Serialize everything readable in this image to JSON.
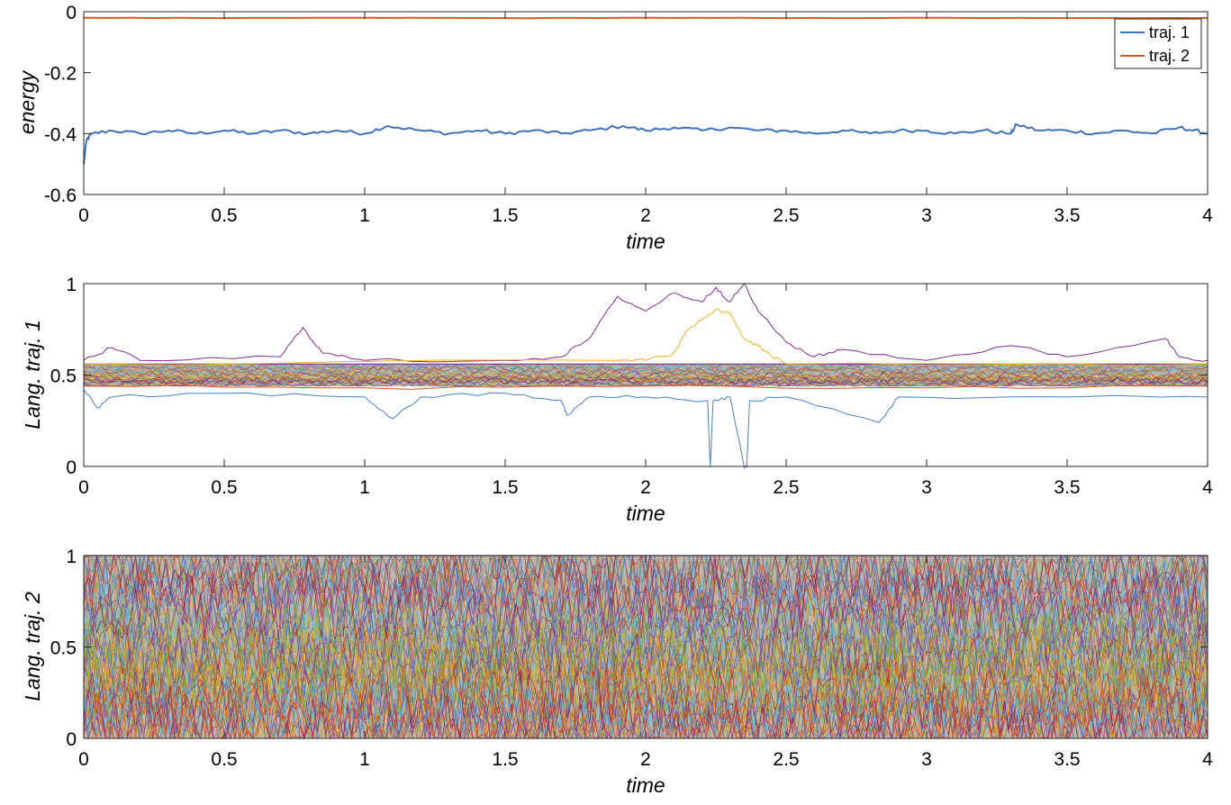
{
  "chart_data": [
    {
      "type": "line",
      "title": "",
      "xlabel": "time",
      "ylabel": "energy",
      "xlim": [
        0,
        4
      ],
      "ylim": [
        -0.6,
        0
      ],
      "xticks": [
        "0",
        "0.5",
        "1",
        "1.5",
        "2",
        "2.5",
        "3",
        "3.5",
        "4"
      ],
      "yticks": [
        "-0.6",
        "-0.4",
        "-0.2",
        "0"
      ],
      "legend_position": "top-right",
      "series": [
        {
          "name": "traj. 1",
          "color": "#3f72b9",
          "x": [
            0,
            0.01,
            0.03,
            0.1,
            0.2,
            0.3,
            0.4,
            0.5,
            0.6,
            0.7,
            0.8,
            0.9,
            1.0,
            1.08,
            1.2,
            1.3,
            1.4,
            1.5,
            1.6,
            1.7,
            1.8,
            1.92,
            2.0,
            2.1,
            2.2,
            2.3,
            2.4,
            2.5,
            2.6,
            2.7,
            2.8,
            2.9,
            3.0,
            3.1,
            3.2,
            3.3,
            3.32,
            3.4,
            3.5,
            3.6,
            3.7,
            3.8,
            3.9,
            3.95,
            4.0
          ],
          "y": [
            -0.5,
            -0.42,
            -0.4,
            -0.39,
            -0.4,
            -0.39,
            -0.4,
            -0.39,
            -0.4,
            -0.39,
            -0.4,
            -0.39,
            -0.4,
            -0.375,
            -0.39,
            -0.4,
            -0.39,
            -0.4,
            -0.39,
            -0.4,
            -0.39,
            -0.375,
            -0.39,
            -0.38,
            -0.39,
            -0.38,
            -0.39,
            -0.39,
            -0.4,
            -0.39,
            -0.4,
            -0.39,
            -0.39,
            -0.4,
            -0.39,
            -0.4,
            -0.37,
            -0.39,
            -0.39,
            -0.4,
            -0.39,
            -0.4,
            -0.38,
            -0.39,
            -0.4
          ]
        },
        {
          "name": "traj. 2",
          "color": "#d15b2a",
          "x": [
            0,
            0.5,
            1,
            1.5,
            2,
            2.5,
            3,
            3.5,
            4
          ],
          "y": [
            -0.02,
            -0.021,
            -0.02,
            -0.021,
            -0.02,
            -0.021,
            -0.02,
            -0.021,
            -0.021
          ]
        }
      ]
    },
    {
      "type": "line",
      "title": "",
      "xlabel": "time",
      "ylabel": "Lang. traj. 1",
      "xlim": [
        0,
        4
      ],
      "ylim": [
        0,
        1
      ],
      "xticks": [
        "0",
        "0.5",
        "1",
        "1.5",
        "2",
        "2.5",
        "3",
        "3.5",
        "4"
      ],
      "yticks": [
        "0",
        "0.5",
        "1"
      ],
      "band": {
        "center": 0.5,
        "half_width": 0.06
      },
      "series": [
        {
          "color": "#7e2f8e",
          "x": [
            0,
            0.1,
            0.2,
            0.7,
            0.78,
            0.85,
            1.0,
            1.5,
            1.7,
            1.8,
            1.9,
            2.0,
            2.1,
            2.2,
            2.25,
            2.3,
            2.35,
            2.4,
            2.5,
            2.6,
            2.7,
            3.0,
            3.3,
            3.5,
            3.85,
            3.9,
            4.0
          ],
          "y": [
            0.58,
            0.65,
            0.58,
            0.6,
            0.76,
            0.62,
            0.58,
            0.58,
            0.6,
            0.7,
            0.93,
            0.85,
            0.95,
            0.9,
            0.98,
            0.9,
            1.0,
            0.85,
            0.68,
            0.6,
            0.64,
            0.58,
            0.66,
            0.6,
            0.7,
            0.6,
            0.58
          ]
        },
        {
          "color": "#edb120",
          "x": [
            0,
            1.9,
            2.0,
            2.1,
            2.15,
            2.2,
            2.25,
            2.3,
            2.35,
            2.4,
            2.45,
            2.5,
            4.0
          ],
          "y": [
            0.56,
            0.58,
            0.58,
            0.62,
            0.75,
            0.8,
            0.86,
            0.84,
            0.7,
            0.66,
            0.6,
            0.56,
            0.56
          ]
        },
        {
          "color": "#4a7fc6",
          "x": [
            0,
            0.05,
            0.1,
            0.5,
            1.0,
            1.1,
            1.2,
            1.5,
            1.7,
            1.72,
            1.8,
            2.0,
            2.22,
            2.23,
            2.24,
            2.3,
            2.35,
            2.36,
            2.37,
            2.5,
            2.83,
            2.9,
            3.5,
            4.0
          ],
          "y": [
            0.42,
            0.32,
            0.38,
            0.4,
            0.38,
            0.26,
            0.38,
            0.4,
            0.36,
            0.28,
            0.38,
            0.38,
            0.36,
            0.0,
            0.36,
            0.38,
            0.0,
            0.0,
            0.36,
            0.38,
            0.24,
            0.38,
            0.38,
            0.38
          ]
        },
        {
          "color": "#d95319",
          "x": [
            0,
            1.0,
            2.0,
            3.0,
            4.0
          ],
          "y": [
            0.44,
            0.43,
            0.44,
            0.43,
            0.44
          ]
        }
      ]
    },
    {
      "type": "line",
      "title": "",
      "xlabel": "time",
      "ylabel": "Lang. traj. 2",
      "xlim": [
        0,
        4
      ],
      "ylim": [
        0,
        1
      ],
      "xticks": [
        "0",
        "0.5",
        "1",
        "1.5",
        "2",
        "2.5",
        "3",
        "3.5",
        "4"
      ],
      "yticks": [
        "0",
        "0.5",
        "1"
      ],
      "band": {
        "lower": 0,
        "upper": 1
      }
    }
  ]
}
